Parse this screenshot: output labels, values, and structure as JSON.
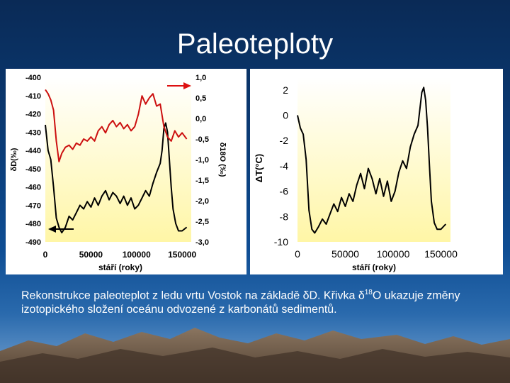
{
  "slide": {
    "title": "Paleoteploty",
    "caption_part1": "Rekonstrukce paleoteplot z ledu vrtu Vostok na základě ",
    "caption_delta1": "δ",
    "caption_part2": "D. Křivka ",
    "caption_delta2": "δ",
    "caption_sup": "18",
    "caption_part3": "O ukazuje změny izotopického složení oceánu odvozené z karbonátů sedimentů."
  },
  "colors": {
    "background": "#0b3d79",
    "plot_gradient_top": "#ffffff",
    "plot_gradient_bottom": "#fff6a6",
    "dD_line": "#000000",
    "d18O_line": "#cc1010",
    "arrow_red": "#dd1010",
    "mountain": "#6e5a48"
  },
  "chart_data": [
    {
      "type": "line",
      "xlabel": "stáří (roky)",
      "ylabel_left": "δD(‰)",
      "ylabel_right": "δ18O (‰)",
      "xlim": [
        0,
        160000
      ],
      "ylim_left": [
        -490,
        -400
      ],
      "ylim_right": [
        -3.0,
        1.0
      ],
      "x_ticks": [
        "0",
        "50000",
        "100000",
        "150000"
      ],
      "x_tick_values": [
        0,
        50000,
        100000,
        150000
      ],
      "y_ticks_left": [
        "-400",
        "-410",
        "-420",
        "-430",
        "-440",
        "-450",
        "-460",
        "-470",
        "-480",
        "-490"
      ],
      "y_ticks_right": [
        "1,0",
        "0,5",
        "0,0",
        "-0,5",
        "-1,0",
        "-1,5",
        "-2,0",
        "-2,5",
        "-3,0"
      ],
      "series": [
        {
          "axis": "left",
          "color": "#000000",
          "x": [
            0,
            3000,
            6000,
            9000,
            12000,
            15000,
            18000,
            22000,
            26000,
            30000,
            34000,
            38000,
            42000,
            46000,
            50000,
            54000,
            58000,
            62000,
            66000,
            70000,
            74000,
            78000,
            82000,
            86000,
            90000,
            94000,
            98000,
            102000,
            106000,
            110000,
            114000,
            118000,
            122000,
            126000,
            128000,
            130000,
            132000,
            134000,
            136000,
            138000,
            140000,
            143000,
            146000,
            150000,
            155000
          ],
          "values": [
            -426,
            -440,
            -445,
            -460,
            -477,
            -482,
            -485,
            -482,
            -476,
            -478,
            -474,
            -470,
            -472,
            -468,
            -471,
            -466,
            -470,
            -465,
            -462,
            -467,
            -463,
            -465,
            -469,
            -465,
            -470,
            -466,
            -472,
            -470,
            -466,
            -462,
            -465,
            -458,
            -452,
            -447,
            -440,
            -428,
            -425,
            -430,
            -445,
            -460,
            -472,
            -480,
            -484,
            -484,
            -482
          ]
        },
        {
          "axis": "right",
          "color": "#cc1010",
          "x": [
            0,
            3000,
            6000,
            9000,
            12000,
            15000,
            18000,
            22000,
            26000,
            30000,
            34000,
            38000,
            42000,
            46000,
            50000,
            54000,
            58000,
            62000,
            66000,
            70000,
            74000,
            78000,
            82000,
            86000,
            90000,
            94000,
            98000,
            102000,
            106000,
            110000,
            114000,
            118000,
            122000,
            126000,
            130000,
            134000,
            138000,
            142000,
            146000,
            150000,
            155000
          ],
          "values": [
            0.7,
            0.6,
            0.45,
            0.2,
            -0.55,
            -1.05,
            -0.85,
            -0.7,
            -0.65,
            -0.75,
            -0.6,
            -0.65,
            -0.5,
            -0.55,
            -0.45,
            -0.55,
            -0.3,
            -0.2,
            -0.35,
            -0.15,
            -0.05,
            -0.2,
            -0.1,
            -0.25,
            -0.15,
            -0.3,
            -0.2,
            0.1,
            0.55,
            0.35,
            0.5,
            0.6,
            0.3,
            0.35,
            -0.2,
            -0.45,
            -0.55,
            -0.3,
            -0.45,
            -0.35,
            -0.5
          ]
        }
      ]
    },
    {
      "type": "line",
      "xlabel": "stáří (roky)",
      "ylabel": "ΔT(°C)",
      "xlim": [
        0,
        160000
      ],
      "ylim": [
        -10,
        3
      ],
      "x_ticks": [
        "0",
        "50000",
        "100000",
        "150000"
      ],
      "x_tick_values": [
        0,
        50000,
        100000,
        150000
      ],
      "y_ticks": [
        "2",
        "0",
        "-2",
        "-4",
        "-6",
        "-8",
        "-10"
      ],
      "y_tick_values": [
        2,
        0,
        -2,
        -4,
        -6,
        -8,
        -10
      ],
      "series": [
        {
          "color": "#000000",
          "x": [
            0,
            3000,
            6000,
            9000,
            12000,
            15000,
            18000,
            22000,
            26000,
            30000,
            34000,
            38000,
            42000,
            46000,
            50000,
            54000,
            58000,
            62000,
            66000,
            70000,
            74000,
            78000,
            82000,
            86000,
            90000,
            94000,
            98000,
            102000,
            106000,
            110000,
            114000,
            118000,
            122000,
            126000,
            128000,
            130000,
            132000,
            134000,
            136000,
            138000,
            140000,
            143000,
            146000,
            150000,
            155000
          ],
          "values": [
            0.0,
            -1.0,
            -1.5,
            -3.5,
            -7.5,
            -9.0,
            -9.3,
            -8.8,
            -8.2,
            -8.6,
            -7.8,
            -7.0,
            -7.6,
            -6.5,
            -7.2,
            -6.2,
            -6.8,
            -5.5,
            -4.6,
            -5.8,
            -4.2,
            -5.0,
            -6.2,
            -5.0,
            -6.4,
            -5.2,
            -6.8,
            -6.0,
            -4.5,
            -3.6,
            -4.2,
            -2.5,
            -1.5,
            -0.8,
            0.5,
            1.8,
            2.2,
            1.2,
            -1.0,
            -4.0,
            -6.8,
            -8.5,
            -9.0,
            -9.0,
            -8.6
          ]
        }
      ]
    }
  ]
}
